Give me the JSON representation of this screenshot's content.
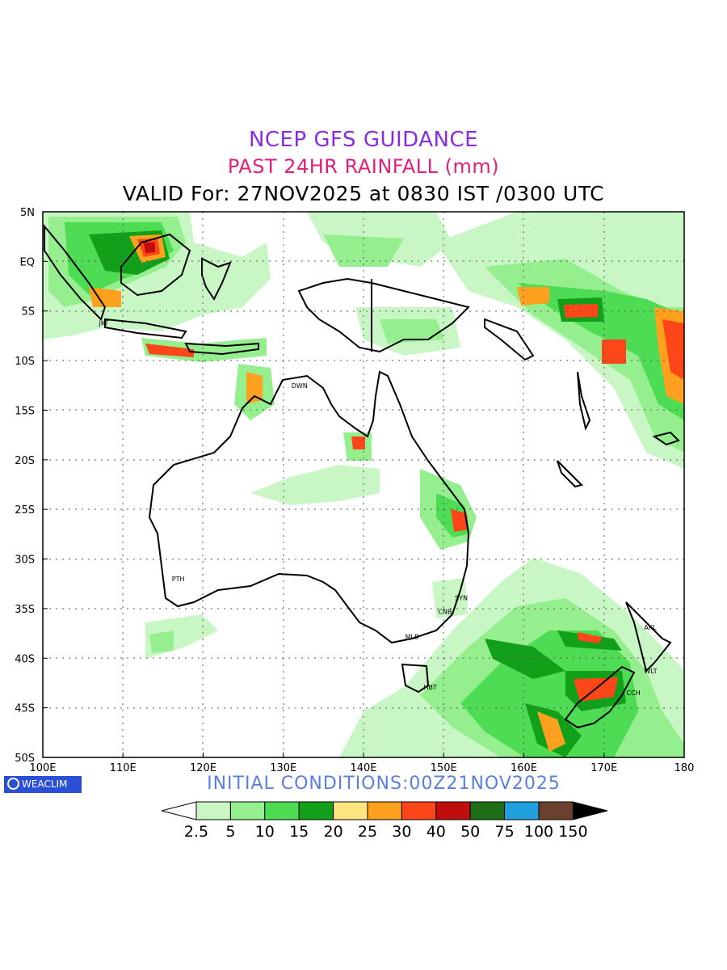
{
  "header": {
    "title1": "NCEP GFS GUIDANCE",
    "title2": "PAST 24HR RAINFALL (mm)",
    "title3": "VALID For: 27NOV2025 at 0830 IST /0300 UTC"
  },
  "map": {
    "lon_labels": [
      "100E",
      "110E",
      "120E",
      "130E",
      "140E",
      "150E",
      "160E",
      "170E",
      "180"
    ],
    "lat_labels": [
      "5N",
      "EQ",
      "5S",
      "10S",
      "15S",
      "20S",
      "25S",
      "30S",
      "35S",
      "40S",
      "45S",
      "50S"
    ],
    "lon_values": [
      100,
      110,
      120,
      130,
      140,
      150,
      160,
      170,
      180
    ],
    "lat_values": [
      5,
      0,
      -5,
      -10,
      -15,
      -20,
      -25,
      -30,
      -35,
      -40,
      -45,
      -50
    ],
    "city_labels": [
      {
        "text": "PTH",
        "lon": 115.9,
        "lat": -32.0
      },
      {
        "text": "SYN",
        "lon": 151.2,
        "lat": -33.9
      },
      {
        "text": "CNB",
        "lon": 149.1,
        "lat": -35.3
      },
      {
        "text": "MLB",
        "lon": 145.0,
        "lat": -37.8
      },
      {
        "text": "HBT",
        "lon": 147.3,
        "lat": -42.9
      },
      {
        "text": "CCH",
        "lon": 172.6,
        "lat": -43.5
      },
      {
        "text": "WLT",
        "lon": 174.8,
        "lat": -41.3
      },
      {
        "text": "AKL",
        "lon": 174.8,
        "lat": -36.9
      },
      {
        "text": "DWN",
        "lon": 130.8,
        "lat": -12.5
      },
      {
        "text": "JKT",
        "lon": 106.8,
        "lat": -6.2
      }
    ]
  },
  "brand": {
    "text": "WEACLIM"
  },
  "initial_conditions": "INITIAL CONDITIONS:00Z21NOV2025",
  "legend": {
    "labels": [
      "2.5",
      "5",
      "10",
      "15",
      "20",
      "25",
      "30",
      "40",
      "50",
      "75",
      "100",
      "150"
    ],
    "colors": [
      "#c8f7c5",
      "#96ef8e",
      "#4fdc55",
      "#12a01a",
      "#ffe680",
      "#ffa01e",
      "#ff4618",
      "#c20d0d",
      "#1e6e18",
      "#1fa0dc",
      "#6b4030"
    ]
  },
  "colors": {
    "light_green": "#c8f7c5",
    "green": "#96ef8e",
    "mid_green": "#4fdc55",
    "dark_green": "#12a01a",
    "yellow": "#ffe680",
    "orange": "#ffa01e",
    "red": "#ff4618",
    "dark_red": "#c20d0d"
  }
}
